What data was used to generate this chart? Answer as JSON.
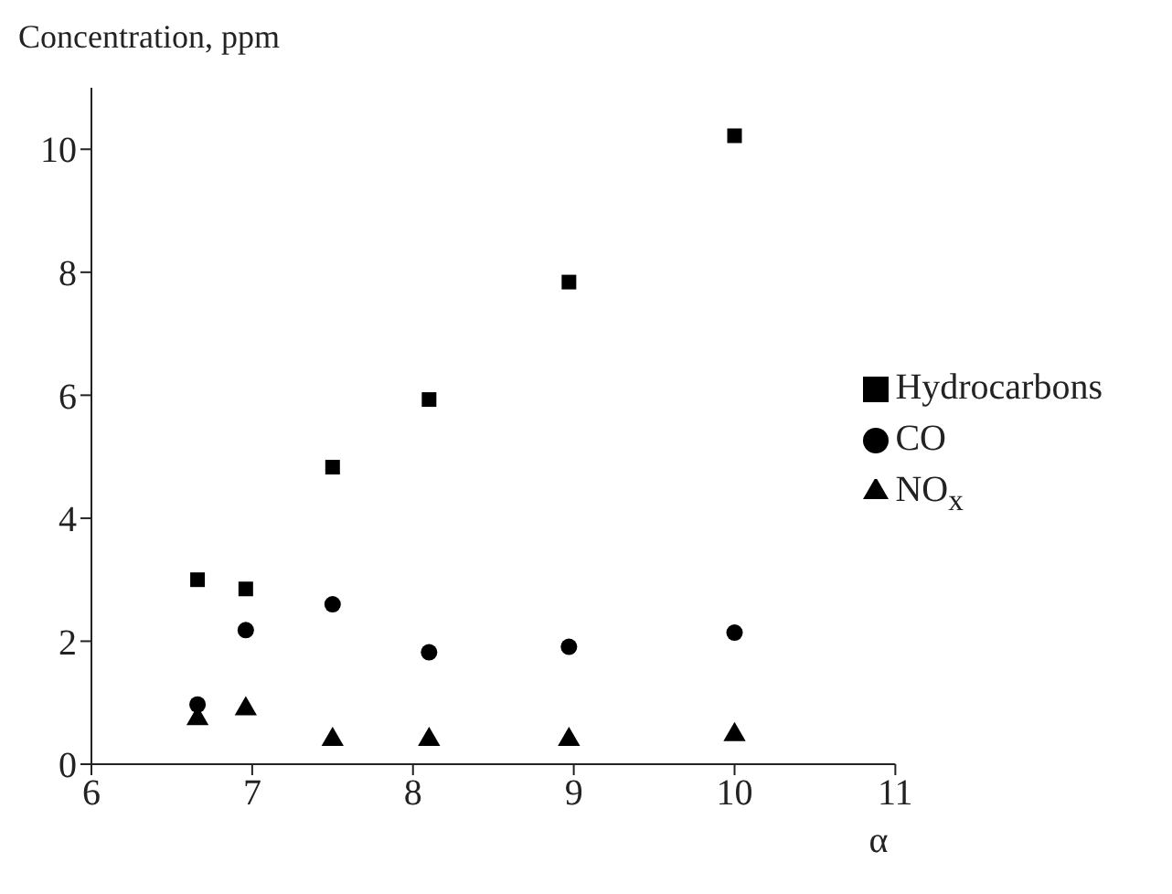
{
  "chart_data": {
    "type": "scatter",
    "xlabel": "α",
    "ylabel": "Concentration, ppm",
    "xlim": [
      6,
      11
    ],
    "xticks": [
      6,
      7,
      8,
      9,
      10,
      11
    ],
    "ylim": [
      0,
      11
    ],
    "yticks": [
      0,
      2,
      4,
      6,
      8,
      10
    ],
    "grid": false,
    "legend": "right",
    "series": [
      {
        "name": "Hydrocarbons",
        "color": "#000000",
        "marker": "square",
        "x": [
          6.66,
          6.96,
          7.5,
          8.1,
          8.97,
          10.0
        ],
        "values": [
          3.0,
          2.85,
          4.83,
          5.93,
          7.84,
          10.22
        ]
      },
      {
        "name": "CO",
        "color": "#000000",
        "marker": "circle",
        "x": [
          6.66,
          6.96,
          7.5,
          8.1,
          8.97,
          10.0
        ],
        "values": [
          0.97,
          2.18,
          2.6,
          1.82,
          1.91,
          2.14
        ]
      },
      {
        "name": "NO$_{x}$",
        "color": "#000000",
        "marker": "triangle",
        "x": [
          6.66,
          6.96,
          7.5,
          8.1,
          8.97,
          10.0
        ],
        "values": [
          0.74,
          0.9,
          0.4,
          0.4,
          0.4,
          0.48
        ]
      }
    ]
  }
}
